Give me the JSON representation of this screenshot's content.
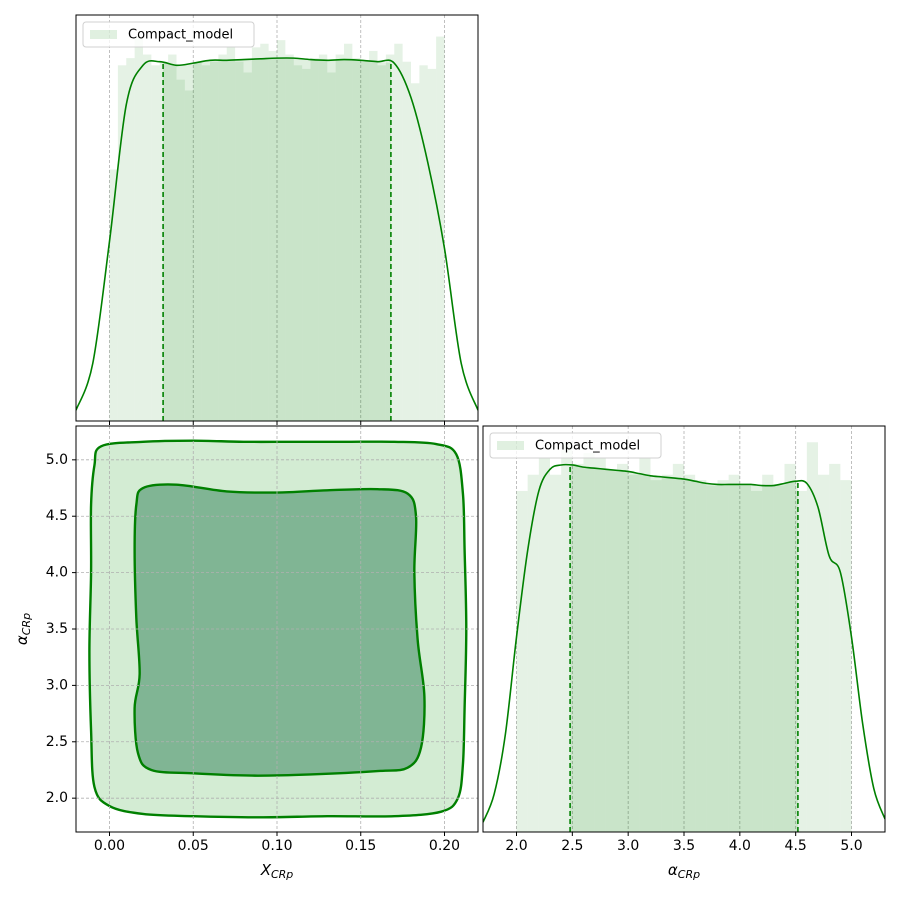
{
  "chart_data": [
    {
      "type": "histogram",
      "name": "Compact_model",
      "color": "#008000",
      "legend": "upper left",
      "grid": true,
      "show_xtick_labels": false,
      "xlim": [
        -0.02,
        0.22
      ],
      "ylim": [
        0,
        5.65
      ],
      "xticks": [
        0,
        0.05,
        0.1,
        0.15,
        0.2
      ],
      "bins": [
        0,
        0.005,
        0.01,
        0.015,
        0.02,
        0.025,
        0.03,
        0.035,
        0.04,
        0.045,
        0.05,
        0.055,
        0.06,
        0.065,
        0.07,
        0.075,
        0.08,
        0.085,
        0.09,
        0.095,
        0.1,
        0.105,
        0.11,
        0.115,
        0.12,
        0.125,
        0.13,
        0.135,
        0.14,
        0.145,
        0.15,
        0.155,
        0.16,
        0.165,
        0.17,
        0.175,
        0.18,
        0.185,
        0.19,
        0.195,
        0.2
      ],
      "values": [
        3.5,
        4.95,
        5.05,
        5.35,
        5.1,
        4.95,
        5.0,
        5.1,
        4.75,
        4.6,
        5.0,
        4.95,
        5.0,
        5.1,
        5.2,
        5.0,
        4.85,
        5.2,
        5.25,
        5.15,
        5.3,
        5.1,
        4.95,
        4.9,
        5.05,
        5.1,
        4.85,
        5.1,
        5.25,
        5.05,
        5.0,
        5.15,
        4.95,
        5.1,
        5.25,
        5.0,
        4.7,
        4.95,
        4.9,
        5.35
      ],
      "kde_x": [
        -0.02,
        -0.01,
        0,
        0.01,
        0.02,
        0.03,
        0.04,
        0.05,
        0.06,
        0.07,
        0.08,
        0.09,
        0.1,
        0.11,
        0.12,
        0.13,
        0.14,
        0.15,
        0.16,
        0.17,
        0.18,
        0.19,
        0.2,
        0.21,
        0.22
      ],
      "kde_values": [
        0.15,
        0.8,
        2.5,
        4.4,
        4.95,
        5.0,
        4.95,
        4.98,
        5.02,
        5.02,
        5.03,
        5.04,
        5.05,
        5.05,
        5.03,
        5.02,
        5.03,
        5.02,
        5.0,
        4.98,
        4.5,
        3.6,
        2.4,
        0.8,
        0.15
      ],
      "intervals": [
        0.032,
        0.168
      ]
    },
    {
      "type": "contour",
      "color": "#008000",
      "fill_colors": [
        "#d3ecd3",
        "#80b594"
      ],
      "grid": true,
      "xlabel": [
        "X",
        "CRp"
      ],
      "ylabel": [
        "α",
        "CRp"
      ],
      "xlim": [
        -0.02,
        0.22
      ],
      "ylim": [
        1.7,
        5.3
      ],
      "xticks": [
        {
          "value": 0,
          "label": "0.00"
        },
        {
          "value": 0.05,
          "label": "0.05"
        },
        {
          "value": 0.1,
          "label": "0.10"
        },
        {
          "value": 0.15,
          "label": "0.15"
        },
        {
          "value": 0.2,
          "label": "0.20"
        }
      ],
      "yticks": [
        {
          "value": 2,
          "label": "2.0"
        },
        {
          "value": 2.5,
          "label": "2.5"
        },
        {
          "value": 3,
          "label": "3.0"
        },
        {
          "value": 3.5,
          "label": "3.5"
        },
        {
          "value": 4,
          "label": "4.0"
        },
        {
          "value": 4.5,
          "label": "4.5"
        },
        {
          "value": 5,
          "label": "5.0"
        }
      ],
      "contours": [
        {
          "x": [
            -0.005,
            0.02,
            0.05,
            0.08,
            0.11,
            0.14,
            0.17,
            0.195,
            0.207,
            0.211,
            0.212,
            0.213,
            0.212,
            0.211,
            0.208,
            0.198,
            0.17,
            0.13,
            0.09,
            0.05,
            0.02,
            0,
            -0.009,
            -0.011,
            -0.012,
            -0.011,
            -0.011,
            -0.009
          ],
          "y": [
            5.12,
            5.16,
            5.17,
            5.16,
            5.16,
            5.16,
            5.16,
            5.14,
            5.05,
            4.7,
            4.2,
            3.5,
            2.8,
            2.3,
            2.0,
            1.88,
            1.84,
            1.84,
            1.83,
            1.84,
            1.86,
            1.93,
            2.1,
            2.6,
            3.3,
            4.0,
            4.6,
            4.95
          ]
        },
        {
          "x": [
            0.02,
            0.04,
            0.07,
            0.1,
            0.13,
            0.16,
            0.178,
            0.183,
            0.182,
            0.184,
            0.188,
            0.186,
            0.178,
            0.16,
            0.12,
            0.085,
            0.05,
            0.025,
            0.017,
            0.015,
            0.018,
            0.016,
            0.015,
            0.016
          ],
          "y": [
            4.75,
            4.78,
            4.72,
            4.71,
            4.73,
            4.74,
            4.7,
            4.5,
            4.0,
            3.4,
            2.9,
            2.45,
            2.27,
            2.24,
            2.21,
            2.2,
            2.22,
            2.25,
            2.4,
            2.8,
            3.1,
            3.6,
            4.2,
            4.6
          ]
        }
      ]
    },
    {
      "type": "histogram",
      "name": "Compact_model",
      "color": "#008000",
      "legend": "upper left",
      "grid": true,
      "xlabel": [
        "α",
        "CRp"
      ],
      "xlim": [
        1.7,
        5.3
      ],
      "ylim": [
        0,
        0.375
      ],
      "xticks": [
        {
          "value": 2,
          "label": "2.0"
        },
        {
          "value": 2.5,
          "label": "2.5"
        },
        {
          "value": 3,
          "label": "3.0"
        },
        {
          "value": 3.5,
          "label": "3.5"
        },
        {
          "value": 4,
          "label": "4.0"
        },
        {
          "value": 4.5,
          "label": "4.5"
        },
        {
          "value": 5,
          "label": "5.0"
        }
      ],
      "bins": [
        2,
        2.1,
        2.2,
        2.3,
        2.4,
        2.5,
        2.6,
        2.7,
        2.8,
        2.9,
        3,
        3.1,
        3.2,
        3.3,
        3.4,
        3.5,
        3.6,
        3.7,
        3.8,
        3.9,
        4,
        4.1,
        4.2,
        4.3,
        4.4,
        4.5,
        4.6,
        4.7,
        4.8,
        4.9,
        5
      ],
      "values": [
        0.315,
        0.33,
        0.345,
        0.33,
        0.36,
        0.34,
        0.35,
        0.345,
        0.335,
        0.34,
        0.33,
        0.345,
        0.325,
        0.33,
        0.34,
        0.33,
        0.325,
        0.32,
        0.325,
        0.33,
        0.32,
        0.315,
        0.33,
        0.32,
        0.34,
        0.315,
        0.36,
        0.33,
        0.34,
        0.325
      ],
      "kde_x": [
        1.7,
        1.8,
        1.9,
        2,
        2.1,
        2.2,
        2.3,
        2.4,
        2.5,
        2.6,
        2.7,
        2.8,
        2.9,
        3,
        3.1,
        3.2,
        3.3,
        3.4,
        3.5,
        3.6,
        3.7,
        3.8,
        3.9,
        4,
        4.1,
        4.2,
        4.3,
        4.4,
        4.5,
        4.6,
        4.7,
        4.8,
        4.9,
        5,
        5.1,
        5.2,
        5.3
      ],
      "kde_values": [
        0.009,
        0.035,
        0.09,
        0.18,
        0.26,
        0.315,
        0.335,
        0.339,
        0.339,
        0.337,
        0.336,
        0.335,
        0.334,
        0.333,
        0.331,
        0.329,
        0.328,
        0.327,
        0.326,
        0.324,
        0.322,
        0.321,
        0.321,
        0.321,
        0.321,
        0.32,
        0.32,
        0.322,
        0.324,
        0.322,
        0.3,
        0.255,
        0.24,
        0.18,
        0.1,
        0.04,
        0.012
      ],
      "intervals": [
        2.48,
        4.52
      ]
    }
  ]
}
